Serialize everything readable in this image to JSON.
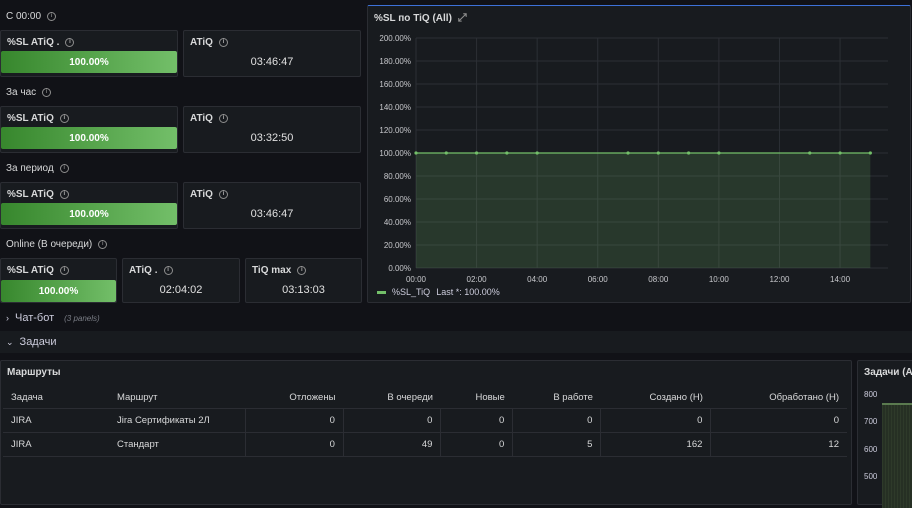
{
  "sections": {
    "since_midnight": "С 00:00",
    "per_hour": "За час",
    "per_period": "За период",
    "online": "Online (В очереди)"
  },
  "row1": {
    "sl_title": "%SL ATiQ .",
    "sl_value": "100.00%",
    "atiq_title": "ATiQ",
    "atiq_value": "03:46:47"
  },
  "row2": {
    "sl_title": "%SL ATiQ",
    "sl_value": "100.00%",
    "atiq_title": "ATiQ",
    "atiq_value": "03:32:50"
  },
  "row3": {
    "sl_title": "%SL ATiQ",
    "sl_value": "100.00%",
    "atiq_title": "ATiQ",
    "atiq_value": "03:46:47"
  },
  "row4": {
    "sl_title": "%SL ATiQ",
    "sl_value": "100.00%",
    "atiq_title": "ATiQ .",
    "atiq_value": "02:04:02",
    "tiqmax_title": "TiQ max",
    "tiqmax_value": "03:13:03"
  },
  "chart_panel": {
    "title": "%SL по TiQ (All)",
    "legend_name": "%SL_TiQ",
    "legend_last": "Last *: 100.00%"
  },
  "chart_data": {
    "type": "area",
    "x": [
      "00:00",
      "01:00",
      "02:00",
      "03:00",
      "04:00",
      "07:00",
      "08:00",
      "09:00",
      "10:00",
      "13:00",
      "14:00",
      "15:00"
    ],
    "values": [
      100,
      100,
      100,
      100,
      100,
      100,
      100,
      100,
      100,
      100,
      100,
      100
    ],
    "x_ticks": [
      "00:00",
      "02:00",
      "04:00",
      "06:00",
      "08:00",
      "10:00",
      "12:00",
      "14:00"
    ],
    "y_ticks": [
      "0.00%",
      "20.00%",
      "40.00%",
      "60.00%",
      "80.00%",
      "100.00%",
      "120.00%",
      "140.00%",
      "160.00%",
      "180.00%",
      "200.00%"
    ],
    "ylim": [
      0,
      200
    ],
    "color": "#73bf69",
    "grid": true,
    "legend": "bottom-left"
  },
  "rows": {
    "chatbot": "Чат-бот",
    "chatbot_note": "(3 panels)",
    "tasks": "Задачи"
  },
  "table_panel": {
    "title": "Маршруты",
    "columns": [
      "Задача",
      "Маршрут",
      "Отложены",
      "В очереди",
      "Новые",
      "В работе",
      "Создано (Н)",
      "Обработано (Н)"
    ],
    "rows": [
      [
        "JIRA",
        "Jira Сертификаты 2Л",
        "0",
        "0",
        "0",
        "0",
        "0",
        "0"
      ],
      [
        "JIRA",
        "Стандарт",
        "0",
        "49",
        "0",
        "5",
        "162",
        "12"
      ]
    ]
  },
  "side_panel": {
    "title": "Задачи (All",
    "y_ticks": [
      "800",
      "700",
      "600",
      "500"
    ]
  },
  "colors": {
    "background": "#111217",
    "panel": "#181b1f",
    "green": "#73bf69",
    "dark_green": "#37872d"
  }
}
